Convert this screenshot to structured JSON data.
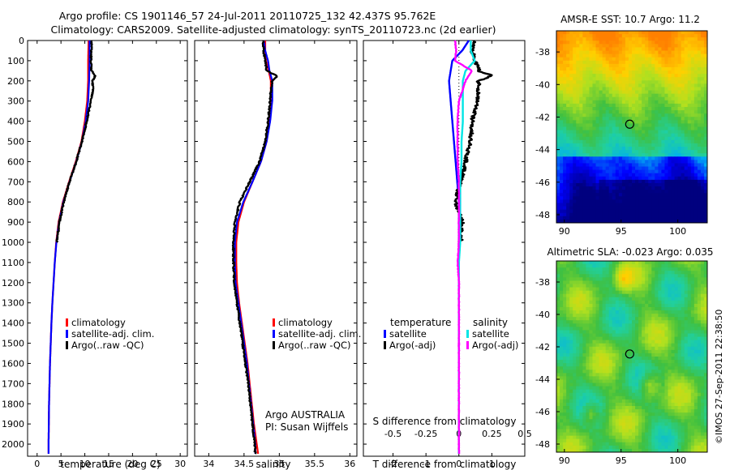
{
  "header": {
    "line1": "Argo profile: CS 1901146_57 24-Jul-2011 20110725_132 42.437S 95.762E",
    "line2": "Climatology: CARS2009. Satellite-adjusted climatology: synTS_20110723.nc (2d earlier)"
  },
  "colors": {
    "climatology": "#ff0000",
    "satellite": "#0000ff",
    "argo": "#000000",
    "s_satellite": "#00e5e5",
    "s_argo": "#ff00ff"
  },
  "depth_ticks": [
    0,
    100,
    200,
    300,
    400,
    500,
    600,
    700,
    800,
    900,
    1000,
    1100,
    1200,
    1300,
    1400,
    1500,
    1600,
    1700,
    1800,
    1900,
    2000
  ],
  "depth_range": [
    0,
    2060
  ],
  "depth_levels": [
    0,
    20,
    40,
    60,
    80,
    100,
    125,
    150,
    175,
    200,
    250,
    300,
    400,
    500,
    600,
    700,
    800,
    900,
    1000,
    1100,
    1200,
    1300,
    1400,
    1500,
    1600,
    1700,
    1800,
    1900,
    2000,
    2050
  ],
  "chart_data": [
    {
      "type": "line",
      "xlabel": "temperature (deg C)",
      "xlim": [
        -2,
        31.5
      ],
      "x_ticks": [
        0,
        5,
        10,
        15,
        20,
        25,
        30
      ],
      "series": [
        {
          "name": "climatology",
          "color": "#ff0000",
          "depth": [
            0,
            100,
            200,
            300,
            400,
            500,
            600,
            700,
            800,
            900,
            1000,
            1100,
            1200,
            1300,
            1400,
            1500,
            1600,
            1700,
            1800,
            1900,
            2000,
            2050
          ],
          "values": [
            10.8,
            10.7,
            10.7,
            10.5,
            10.0,
            9.3,
            8.1,
            6.7,
            5.4,
            4.5,
            4.0,
            3.7,
            3.45,
            3.2,
            3.0,
            2.85,
            2.7,
            2.6,
            2.5,
            2.45,
            2.4,
            2.4
          ]
        },
        {
          "name": "satellite-adj. clim.",
          "color": "#0000ff",
          "depth": [
            0,
            100,
            200,
            300,
            400,
            500,
            600,
            700,
            800,
            900,
            1000,
            1100,
            1200,
            1300,
            1400,
            1500,
            1600,
            1700,
            1800,
            1900,
            2000,
            2050
          ],
          "values": [
            11.0,
            11.0,
            10.9,
            10.7,
            10.2,
            9.4,
            8.2,
            6.8,
            5.5,
            4.6,
            4.05,
            3.7,
            3.45,
            3.2,
            3.0,
            2.85,
            2.7,
            2.6,
            2.5,
            2.45,
            2.4,
            2.4
          ]
        },
        {
          "name": "Argo(..raw -QC)",
          "color": "#000000",
          "depth": [
            0,
            20,
            60,
            100,
            150,
            175,
            200,
            250,
            300,
            400,
            500,
            600,
            700,
            800,
            900,
            1000
          ],
          "values": [
            11.4,
            11.4,
            11.35,
            11.3,
            11.4,
            12.2,
            11.6,
            11.7,
            11.3,
            10.4,
            9.4,
            8.2,
            6.8,
            5.6,
            4.7,
            4.1
          ]
        }
      ],
      "legend": [
        "climatology",
        "satellite-adj. clim.",
        "Argo(..raw -QC)"
      ]
    },
    {
      "type": "line",
      "xlabel": "salinity",
      "xlim": [
        33.8,
        36.1
      ],
      "x_ticks": [
        34,
        34.5,
        35,
        35.5,
        36
      ],
      "series": [
        {
          "name": "climatology",
          "color": "#ff0000",
          "depth": [
            0,
            50,
            100,
            150,
            200,
            300,
            400,
            500,
            600,
            700,
            800,
            900,
            1000,
            1100,
            1200,
            1300,
            1400,
            1500,
            1600,
            1700,
            1800,
            1900,
            2000,
            2050
          ],
          "values": [
            34.8,
            34.8,
            34.81,
            34.85,
            34.88,
            34.88,
            34.86,
            34.82,
            34.74,
            34.62,
            34.5,
            34.42,
            34.39,
            34.39,
            34.4,
            34.43,
            34.47,
            34.51,
            34.55,
            34.58,
            34.61,
            34.64,
            34.68,
            34.7
          ]
        },
        {
          "name": "satellite-adj. clim.",
          "color": "#0000ff",
          "depth": [
            0,
            50,
            100,
            150,
            200,
            300,
            400,
            500,
            600,
            700,
            800,
            900,
            1000,
            1100,
            1200,
            1300,
            1400,
            1500,
            1600,
            1700,
            1800,
            1900,
            2000,
            2050
          ],
          "values": [
            34.78,
            34.8,
            34.84,
            34.86,
            34.9,
            34.9,
            34.87,
            34.82,
            34.74,
            34.62,
            34.49,
            34.4,
            34.37,
            34.37,
            34.38,
            34.42,
            34.46,
            34.5,
            34.54,
            34.57,
            34.6,
            34.63,
            34.66,
            34.66
          ]
        },
        {
          "name": "Argo(..raw -QC)",
          "color": "#000000",
          "depth": [
            0,
            60,
            100,
            150,
            175,
            200,
            250,
            300,
            400,
            500,
            600,
            700,
            800,
            900,
            1000,
            1100,
            1200,
            1300,
            1400,
            1500,
            1600,
            1700,
            1800,
            1900,
            2000,
            2050
          ],
          "values": [
            34.77,
            34.78,
            34.8,
            34.82,
            34.97,
            34.9,
            34.88,
            34.87,
            34.84,
            34.8,
            34.72,
            34.58,
            34.44,
            34.37,
            34.35,
            34.35,
            34.36,
            34.4,
            34.44,
            34.48,
            34.52,
            34.56,
            34.59,
            34.62,
            34.65,
            34.66
          ]
        }
      ],
      "legend": [
        "climatology",
        "satellite-adj. clim.",
        "Argo(..raw -QC)"
      ],
      "annotation": [
        "Argo AUSTRALIA",
        "PI: Susan Wijffels"
      ]
    },
    {
      "type": "line",
      "xlabel": "T difference from climatology",
      "xlabel_top": "S difference from climatology",
      "xlim": [
        -2.9,
        2.0
      ],
      "x_ticks": [
        -2,
        -1,
        0,
        1
      ],
      "s_ticks": [
        "-0.5",
        "-0.25",
        "0",
        "0.25",
        "0.5"
      ],
      "series": [
        {
          "name": "temperature satellite",
          "color": "#0000ff",
          "depth": [
            0,
            50,
            100,
            200,
            300,
            400,
            500,
            600,
            700,
            800,
            900,
            1000,
            1200,
            1400,
            1600,
            1800,
            2000,
            2050
          ],
          "values": [
            0.3,
            0.1,
            -0.2,
            -0.3,
            -0.25,
            -0.2,
            -0.15,
            -0.1,
            -0.05,
            0,
            0,
            0,
            0,
            0,
            0,
            0,
            0,
            0
          ]
        },
        {
          "name": "temperature Argo(-adj)",
          "color": "#000000",
          "depth": [
            0,
            50,
            100,
            150,
            175,
            200,
            300,
            400,
            500,
            600,
            700,
            800,
            900,
            1000
          ],
          "values": [
            0.5,
            0.4,
            0.5,
            0.6,
            1.0,
            0.6,
            0.55,
            0.4,
            0.35,
            0.2,
            0.05,
            -0.1,
            0.1,
            0.05
          ]
        },
        {
          "name": "salinity satellite",
          "color": "#00e5e5",
          "depth": [
            0,
            50,
            100,
            150,
            200,
            300,
            400,
            500,
            600,
            700,
            800,
            900,
            1000,
            1100,
            1200,
            1400,
            1600,
            1800,
            2000,
            2050
          ],
          "values": [
            0.09,
            0.09,
            0.12,
            0.05,
            0.03,
            0.03,
            0.03,
            0.02,
            0.02,
            0.01,
            0.01,
            0.01,
            0.01,
            0.0,
            0.0,
            0.0,
            0.0,
            0.0,
            0.0,
            0.0
          ]
        },
        {
          "name": "salinity Argo(-adj)",
          "color": "#ff00ff",
          "depth": [
            0,
            50,
            100,
            150,
            200,
            300,
            400,
            500,
            600,
            700,
            800,
            900,
            1000,
            1100,
            1200,
            1400,
            1600,
            1800,
            2000,
            2050
          ],
          "values": [
            -0.03,
            -0.02,
            -0.03,
            0.1,
            0.05,
            0.0,
            -0.01,
            -0.01,
            -0.01,
            0.0,
            0.0,
            0.0,
            0.0,
            -0.01,
            0.0,
            0.0,
            0.0,
            0.0,
            0.0,
            0.0
          ]
        }
      ],
      "legend_headers": [
        "temperature",
        "salinity"
      ],
      "legend": [
        "satellite",
        "Argo(-adj)",
        "satellite",
        "Argo(-adj)"
      ]
    },
    {
      "type": "heatmap",
      "title": "AMSR-E SST: 10.7 Argo: 11.2",
      "xlim": [
        89.3,
        102.6
      ],
      "ylim": [
        -48.5,
        -36.7
      ],
      "x_ticks": [
        90,
        95,
        100
      ],
      "y_ticks": [
        -38,
        -40,
        -42,
        -44,
        -46,
        -48
      ],
      "marker": {
        "lon": 95.76,
        "lat": -42.44
      }
    },
    {
      "type": "heatmap",
      "title": "Altimetric SLA: -0.023 Argo: 0.035",
      "xlim": [
        89.3,
        102.6
      ],
      "ylim": [
        -48.5,
        -36.7
      ],
      "x_ticks": [
        90,
        95,
        100
      ],
      "y_ticks": [
        -38,
        -40,
        -42,
        -44,
        -46,
        -48
      ],
      "marker": {
        "lon": 95.76,
        "lat": -42.44
      }
    }
  ],
  "credit": "©IMOS 27-Sep-2011 22:38:50"
}
